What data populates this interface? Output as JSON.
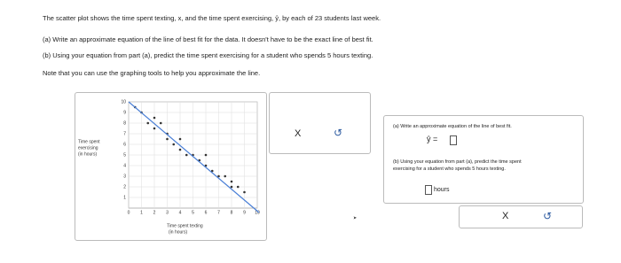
{
  "question": {
    "intro": "The scatter plot shows the time spent texting, x, and the time spent exercising, ŷ, by each of 23 students last week.",
    "part_a": "(a) Write an approximate equation of the line of best fit for the data. It doesn't have to be the exact line of best fit.",
    "part_b": "(b) Using your equation from part (a), predict the time spent exercising for a student who spends 5 hours texting.",
    "note": "Note that you can use the graphing tools to help you approximate the line."
  },
  "graph": {
    "y_label": [
      "Time spent",
      "exercising",
      "(in hours)"
    ],
    "x_label": [
      "Time spent texting",
      "(in hours)"
    ],
    "xlim": [
      0,
      10
    ],
    "ylim": [
      0,
      10
    ],
    "xticks": [
      0,
      1,
      2,
      3,
      4,
      5,
      6,
      7,
      8,
      9,
      10
    ],
    "yticks": [
      1,
      2,
      3,
      4,
      5,
      6,
      7,
      8,
      9,
      10
    ],
    "points": {
      "x": [
        0.5,
        1,
        1.5,
        2,
        2,
        2.5,
        3,
        3,
        3.5,
        4,
        4,
        4.5,
        5,
        5.5,
        6,
        6,
        6.5,
        7,
        7.5,
        8,
        8,
        8.5,
        9
      ],
      "y": [
        9.5,
        9,
        8,
        8.5,
        7.5,
        8,
        7,
        6.5,
        6,
        6.5,
        5.5,
        5,
        5,
        4.5,
        4,
        5,
        3.5,
        3,
        3,
        2.5,
        2,
        2,
        1.5
      ]
    }
  },
  "tools": {
    "clear": "X",
    "undo": "↺"
  },
  "answer": {
    "part_a": "(a) Write an approximate equation of the line of best fit.",
    "equation": "ŷ =",
    "part_b": [
      "(b) Using your equation from part (a), predict the time spent",
      "exercising for a student who spends 5 hours texting."
    ],
    "unit": "hours",
    "clear": "X",
    "undo": "↺"
  }
}
